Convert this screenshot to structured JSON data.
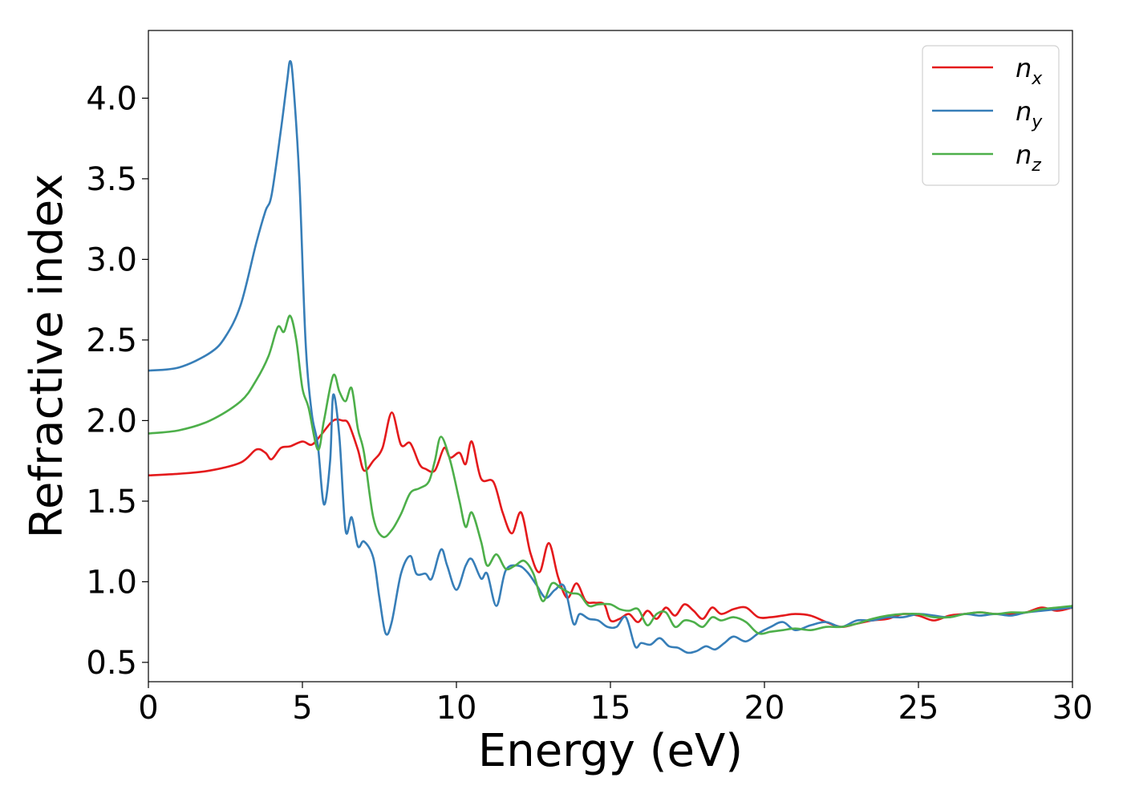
{
  "chart_data": {
    "type": "line",
    "xlabel": "Energy (eV)",
    "ylabel": "Refractive index",
    "xlim": [
      0,
      30
    ],
    "ylim": [
      0.38,
      4.42
    ],
    "xticks": [
      0,
      5,
      10,
      15,
      20,
      25,
      30
    ],
    "xtick_labels": [
      "0",
      "5",
      "10",
      "15",
      "20",
      "25",
      "30"
    ],
    "yticks": [
      0.5,
      1.0,
      1.5,
      2.0,
      2.5,
      3.0,
      3.5,
      4.0
    ],
    "ytick_labels": [
      "0.5",
      "1.0",
      "1.5",
      "2.0",
      "2.5",
      "3.0",
      "3.5",
      "4.0"
    ],
    "grid": false,
    "legend": {
      "placement": "top-right"
    },
    "series": [
      {
        "name": "n_x",
        "label_base": "n",
        "label_sub": "x",
        "color": "#e41a1c",
        "x": [
          0,
          1,
          2,
          3,
          3.5,
          3.8,
          4.0,
          4.3,
          4.6,
          5.0,
          5.3,
          5.6,
          6.0,
          6.3,
          6.5,
          6.8,
          7.0,
          7.3,
          7.6,
          7.9,
          8.2,
          8.5,
          8.8,
          9.0,
          9.3,
          9.6,
          9.8,
          10.1,
          10.3,
          10.5,
          10.8,
          11.2,
          11.5,
          11.8,
          12.1,
          12.4,
          12.7,
          13.0,
          13.3,
          13.6,
          13.9,
          14.2,
          14.5,
          14.8,
          15.0,
          15.3,
          15.6,
          15.9,
          16.2,
          16.5,
          16.8,
          17.1,
          17.4,
          17.7,
          18.0,
          18.3,
          18.6,
          19.0,
          19.4,
          19.8,
          20.2,
          20.6,
          21.0,
          21.5,
          22.0,
          22.5,
          23.0,
          23.5,
          24.0,
          24.5,
          25.0,
          25.5,
          26.0,
          26.5,
          27.0,
          27.5,
          28.0,
          28.5,
          29.0,
          29.5,
          30.0
        ],
        "y": [
          1.66,
          1.67,
          1.69,
          1.74,
          1.82,
          1.8,
          1.76,
          1.83,
          1.84,
          1.87,
          1.85,
          1.91,
          2.0,
          2.0,
          1.98,
          1.82,
          1.69,
          1.75,
          1.83,
          2.05,
          1.85,
          1.86,
          1.73,
          1.7,
          1.69,
          1.83,
          1.77,
          1.8,
          1.73,
          1.87,
          1.64,
          1.62,
          1.43,
          1.3,
          1.43,
          1.18,
          1.06,
          1.24,
          1.03,
          0.9,
          0.99,
          0.88,
          0.87,
          0.86,
          0.76,
          0.77,
          0.8,
          0.75,
          0.82,
          0.77,
          0.84,
          0.79,
          0.86,
          0.82,
          0.77,
          0.84,
          0.8,
          0.83,
          0.84,
          0.78,
          0.78,
          0.79,
          0.8,
          0.79,
          0.75,
          0.72,
          0.74,
          0.76,
          0.77,
          0.8,
          0.79,
          0.76,
          0.79,
          0.8,
          0.81,
          0.8,
          0.8,
          0.81,
          0.84,
          0.82,
          0.84
        ]
      },
      {
        "name": "n_y",
        "label_base": "n",
        "label_sub": "y",
        "color": "#377eb8",
        "x": [
          0,
          1,
          2,
          2.5,
          3,
          3.5,
          3.8,
          4.0,
          4.3,
          4.5,
          4.6,
          4.7,
          4.9,
          5.1,
          5.3,
          5.5,
          5.7,
          5.9,
          6.0,
          6.2,
          6.4,
          6.6,
          6.8,
          7.0,
          7.3,
          7.5,
          7.7,
          7.9,
          8.2,
          8.5,
          8.7,
          9.0,
          9.2,
          9.5,
          9.7,
          10.0,
          10.3,
          10.5,
          10.8,
          11.0,
          11.3,
          11.6,
          12.0,
          12.3,
          12.6,
          12.9,
          13.2,
          13.5,
          13.8,
          14.0,
          14.3,
          14.6,
          14.9,
          15.2,
          15.5,
          15.8,
          16.0,
          16.3,
          16.6,
          16.9,
          17.2,
          17.5,
          17.8,
          18.1,
          18.4,
          18.7,
          19.0,
          19.4,
          19.8,
          20.2,
          20.6,
          21.0,
          21.5,
          22.0,
          22.5,
          23.0,
          23.5,
          24.0,
          24.5,
          25.0,
          25.5,
          26.0,
          26.5,
          27.0,
          27.5,
          28.0,
          28.5,
          29.0,
          29.5,
          30.0
        ],
        "y": [
          2.31,
          2.33,
          2.42,
          2.52,
          2.72,
          3.1,
          3.3,
          3.4,
          3.8,
          4.1,
          4.23,
          4.1,
          3.5,
          2.5,
          2.05,
          1.85,
          1.48,
          1.75,
          2.16,
          1.9,
          1.32,
          1.4,
          1.22,
          1.25,
          1.15,
          0.9,
          0.68,
          0.75,
          1.05,
          1.16,
          1.05,
          1.05,
          1.02,
          1.2,
          1.1,
          0.95,
          1.1,
          1.14,
          1.02,
          1.05,
          0.85,
          1.07,
          1.1,
          1.06,
          0.98,
          0.9,
          0.95,
          0.97,
          0.74,
          0.8,
          0.77,
          0.76,
          0.72,
          0.72,
          0.78,
          0.6,
          0.62,
          0.61,
          0.65,
          0.6,
          0.59,
          0.56,
          0.57,
          0.6,
          0.58,
          0.62,
          0.66,
          0.63,
          0.68,
          0.72,
          0.75,
          0.7,
          0.73,
          0.75,
          0.72,
          0.76,
          0.76,
          0.78,
          0.78,
          0.8,
          0.79,
          0.78,
          0.8,
          0.79,
          0.8,
          0.79,
          0.81,
          0.82,
          0.83,
          0.84
        ]
      },
      {
        "name": "n_z",
        "label_base": "n",
        "label_sub": "z",
        "color": "#4daf4a",
        "x": [
          0,
          1,
          2,
          3,
          3.5,
          3.9,
          4.2,
          4.4,
          4.6,
          4.8,
          5.0,
          5.2,
          5.5,
          5.7,
          6.0,
          6.2,
          6.4,
          6.6,
          6.8,
          7.0,
          7.3,
          7.6,
          7.9,
          8.2,
          8.5,
          8.8,
          9.1,
          9.3,
          9.5,
          9.8,
          10.1,
          10.3,
          10.5,
          10.8,
          11.0,
          11.3,
          11.6,
          11.9,
          12.2,
          12.5,
          12.8,
          13.1,
          13.4,
          13.7,
          14.0,
          14.3,
          14.6,
          15.0,
          15.3,
          15.6,
          15.9,
          16.2,
          16.5,
          16.8,
          17.1,
          17.4,
          17.7,
          18.0,
          18.3,
          18.6,
          19.0,
          19.4,
          19.8,
          20.2,
          20.6,
          21.0,
          21.5,
          22.0,
          22.5,
          23.0,
          23.5,
          24.0,
          24.5,
          25.0,
          25.5,
          26.0,
          26.5,
          27.0,
          27.5,
          28.0,
          28.5,
          29.0,
          29.5,
          30.0
        ],
        "y": [
          1.92,
          1.94,
          2.0,
          2.12,
          2.25,
          2.4,
          2.58,
          2.55,
          2.65,
          2.5,
          2.2,
          2.08,
          1.82,
          2.0,
          2.28,
          2.18,
          2.12,
          2.2,
          1.95,
          1.8,
          1.4,
          1.28,
          1.32,
          1.42,
          1.55,
          1.58,
          1.62,
          1.75,
          1.9,
          1.75,
          1.5,
          1.34,
          1.43,
          1.25,
          1.1,
          1.17,
          1.08,
          1.1,
          1.13,
          1.05,
          0.88,
          0.99,
          0.96,
          0.93,
          0.92,
          0.85,
          0.86,
          0.86,
          0.83,
          0.82,
          0.83,
          0.73,
          0.8,
          0.81,
          0.72,
          0.76,
          0.75,
          0.72,
          0.78,
          0.76,
          0.78,
          0.75,
          0.68,
          0.69,
          0.7,
          0.71,
          0.7,
          0.72,
          0.72,
          0.74,
          0.77,
          0.79,
          0.8,
          0.8,
          0.78,
          0.78,
          0.8,
          0.81,
          0.8,
          0.81,
          0.81,
          0.83,
          0.84,
          0.85
        ]
      }
    ]
  }
}
